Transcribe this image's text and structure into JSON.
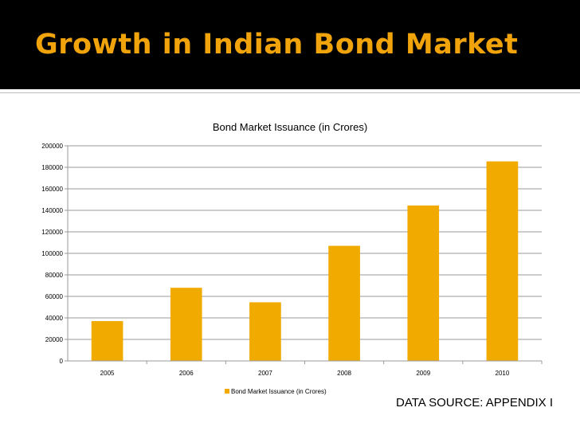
{
  "slide": {
    "title": "Growth in Indian Bond Market",
    "source_note": "DATA SOURCE: APPENDIX I"
  },
  "colors": {
    "title": "#F0A30A",
    "bar": "#F0AA00",
    "grid": "#9a9a9a",
    "background": "#ffffff",
    "header_band": "#000000"
  },
  "chart_data": {
    "type": "bar",
    "title": "Bond Market Issuance (in Crores)",
    "categories": [
      "2005",
      "2006",
      "2007",
      "2008",
      "2009",
      "2010"
    ],
    "series": [
      {
        "name": "Bond Market Issuance (in Crores)",
        "values": [
          37000,
          68000,
          54500,
          107000,
          144500,
          185500
        ]
      }
    ],
    "ylim": [
      0,
      200000
    ],
    "yticks": [
      0,
      20000,
      40000,
      60000,
      80000,
      100000,
      120000,
      140000,
      160000,
      180000,
      200000
    ],
    "xlabel": "",
    "ylabel": "",
    "grid": true,
    "legend_position": "bottom"
  }
}
